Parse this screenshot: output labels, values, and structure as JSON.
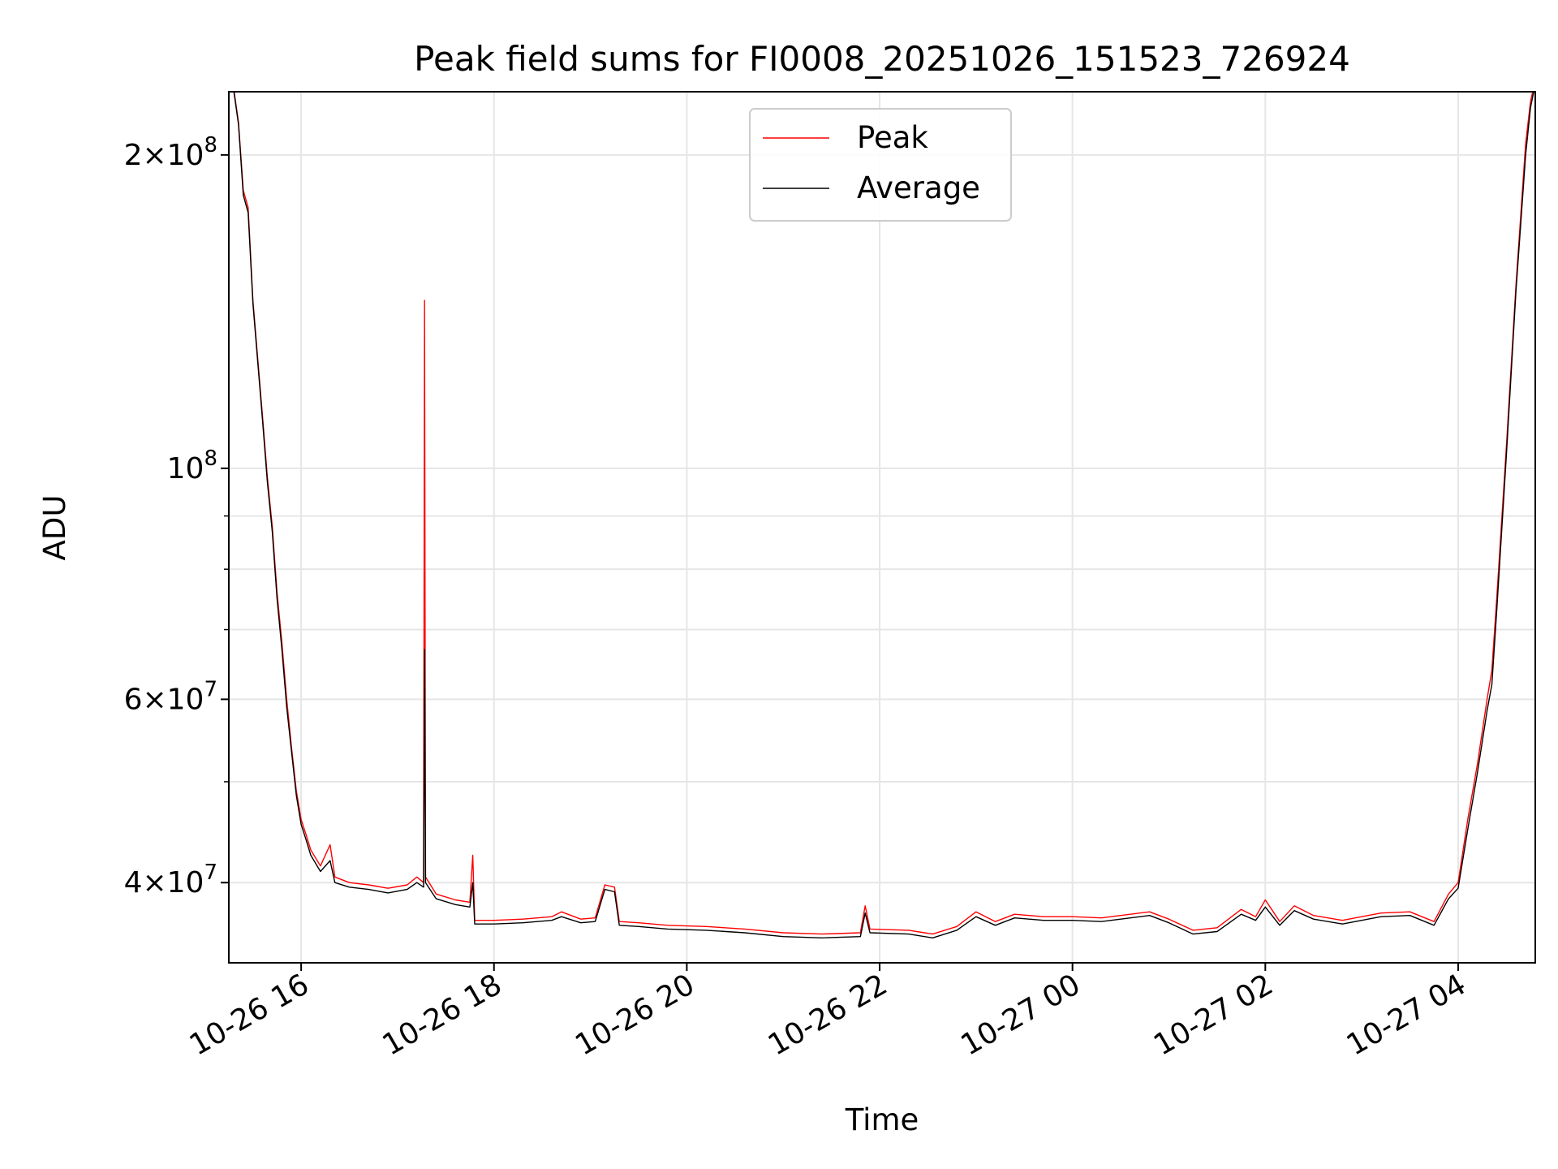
{
  "chart_data": {
    "type": "line",
    "title": "Peak field sums for FI0008_20251026_151523_726924",
    "xlabel": "Time",
    "ylabel": "ADU",
    "yscale": "log",
    "ylim": [
      33500000,
      230000000
    ],
    "xlim_hours": [
      15.25,
      28.8
    ],
    "grid": true,
    "legend_position": "top-center",
    "x_ticks": [
      {
        "hour": 16,
        "label": "10-26 16"
      },
      {
        "hour": 18,
        "label": "10-26 18"
      },
      {
        "hour": 20,
        "label": "10-26 20"
      },
      {
        "hour": 22,
        "label": "10-26 22"
      },
      {
        "hour": 24,
        "label": "10-27 00"
      },
      {
        "hour": 26,
        "label": "10-27 02"
      },
      {
        "hour": 28,
        "label": "10-27 04"
      }
    ],
    "y_ticks": [
      {
        "value": 40000000,
        "base": "4×10",
        "exp": "7"
      },
      {
        "value": 60000000,
        "base": "6×10",
        "exp": "7"
      },
      {
        "value": 100000000,
        "base": "10",
        "exp": "8"
      },
      {
        "value": 200000000,
        "base": "2×10",
        "exp": "8"
      }
    ],
    "y_minor_ticks": [
      50000000,
      70000000,
      80000000,
      90000000
    ],
    "series": [
      {
        "name": "Peak",
        "color": "#ff0000",
        "points": [
          [
            15.25,
            235000000
          ],
          [
            15.3,
            232000000
          ],
          [
            15.35,
            215000000
          ],
          [
            15.4,
            185000000
          ],
          [
            15.45,
            178000000
          ],
          [
            15.5,
            145000000
          ],
          [
            15.6,
            112000000
          ],
          [
            15.65,
            98000000
          ],
          [
            15.7,
            88000000
          ],
          [
            15.75,
            76000000
          ],
          [
            15.8,
            68000000
          ],
          [
            15.85,
            60000000
          ],
          [
            15.9,
            54000000
          ],
          [
            15.95,
            49000000
          ],
          [
            16.0,
            46000000
          ],
          [
            16.05,
            44500000
          ],
          [
            16.1,
            43000000
          ],
          [
            16.2,
            41500000
          ],
          [
            16.3,
            43500000
          ],
          [
            16.35,
            40500000
          ],
          [
            16.5,
            40000000
          ],
          [
            16.7,
            39800000
          ],
          [
            16.9,
            39500000
          ],
          [
            17.1,
            39800000
          ],
          [
            17.2,
            40500000
          ],
          [
            17.27,
            40000000
          ],
          [
            17.28,
            145000000
          ],
          [
            17.29,
            40500000
          ],
          [
            17.4,
            39000000
          ],
          [
            17.6,
            38500000
          ],
          [
            17.75,
            38300000
          ],
          [
            17.78,
            42500000
          ],
          [
            17.8,
            36800000
          ],
          [
            18.0,
            36800000
          ],
          [
            18.3,
            36900000
          ],
          [
            18.6,
            37100000
          ],
          [
            18.7,
            37500000
          ],
          [
            18.9,
            36900000
          ],
          [
            19.05,
            37000000
          ],
          [
            19.15,
            39800000
          ],
          [
            19.25,
            39600000
          ],
          [
            19.3,
            36700000
          ],
          [
            19.5,
            36600000
          ],
          [
            19.8,
            36400000
          ],
          [
            20.2,
            36300000
          ],
          [
            20.6,
            36100000
          ],
          [
            21.0,
            35800000
          ],
          [
            21.4,
            35700000
          ],
          [
            21.8,
            35800000
          ],
          [
            21.85,
            38000000
          ],
          [
            21.9,
            36100000
          ],
          [
            22.3,
            36000000
          ],
          [
            22.55,
            35700000
          ],
          [
            22.8,
            36300000
          ],
          [
            23.0,
            37500000
          ],
          [
            23.2,
            36700000
          ],
          [
            23.4,
            37300000
          ],
          [
            23.7,
            37100000
          ],
          [
            24.0,
            37100000
          ],
          [
            24.3,
            37000000
          ],
          [
            24.5,
            37200000
          ],
          [
            24.8,
            37500000
          ],
          [
            25.0,
            36900000
          ],
          [
            25.25,
            36000000
          ],
          [
            25.5,
            36200000
          ],
          [
            25.75,
            37700000
          ],
          [
            25.9,
            37100000
          ],
          [
            26.0,
            38500000
          ],
          [
            26.15,
            36700000
          ],
          [
            26.3,
            38000000
          ],
          [
            26.5,
            37200000
          ],
          [
            26.8,
            36800000
          ],
          [
            27.0,
            37100000
          ],
          [
            27.2,
            37400000
          ],
          [
            27.5,
            37500000
          ],
          [
            27.75,
            36700000
          ],
          [
            27.9,
            39000000
          ],
          [
            28.0,
            40000000
          ],
          [
            28.1,
            46000000
          ],
          [
            28.2,
            52000000
          ],
          [
            28.3,
            60000000
          ],
          [
            28.35,
            64000000
          ],
          [
            28.4,
            75000000
          ],
          [
            28.5,
            105000000
          ],
          [
            28.6,
            150000000
          ],
          [
            28.7,
            205000000
          ],
          [
            28.75,
            225000000
          ],
          [
            28.8,
            236000000
          ]
        ]
      },
      {
        "name": "Average",
        "color": "#000000",
        "points": [
          [
            15.25,
            235000000
          ],
          [
            15.3,
            231000000
          ],
          [
            15.35,
            214000000
          ],
          [
            15.4,
            183000000
          ],
          [
            15.45,
            176000000
          ],
          [
            15.5,
            144000000
          ],
          [
            15.6,
            111000000
          ],
          [
            15.65,
            97000000
          ],
          [
            15.7,
            87000000
          ],
          [
            15.75,
            75000000
          ],
          [
            15.8,
            67000000
          ],
          [
            15.85,
            59000000
          ],
          [
            15.9,
            53500000
          ],
          [
            15.95,
            48500000
          ],
          [
            16.0,
            45500000
          ],
          [
            16.05,
            44000000
          ],
          [
            16.1,
            42500000
          ],
          [
            16.2,
            41000000
          ],
          [
            16.3,
            42000000
          ],
          [
            16.35,
            40000000
          ],
          [
            16.5,
            39600000
          ],
          [
            16.7,
            39400000
          ],
          [
            16.9,
            39100000
          ],
          [
            17.1,
            39400000
          ],
          [
            17.2,
            40000000
          ],
          [
            17.27,
            39600000
          ],
          [
            17.28,
            67000000
          ],
          [
            17.29,
            40000000
          ],
          [
            17.4,
            38600000
          ],
          [
            17.6,
            38100000
          ],
          [
            17.75,
            37900000
          ],
          [
            17.78,
            40000000
          ],
          [
            17.8,
            36500000
          ],
          [
            18.0,
            36500000
          ],
          [
            18.3,
            36600000
          ],
          [
            18.6,
            36800000
          ],
          [
            18.7,
            37100000
          ],
          [
            18.9,
            36600000
          ],
          [
            19.05,
            36700000
          ],
          [
            19.15,
            39400000
          ],
          [
            19.25,
            39200000
          ],
          [
            19.3,
            36400000
          ],
          [
            19.5,
            36300000
          ],
          [
            19.8,
            36100000
          ],
          [
            20.2,
            36000000
          ],
          [
            20.6,
            35800000
          ],
          [
            21.0,
            35500000
          ],
          [
            21.4,
            35400000
          ],
          [
            21.8,
            35500000
          ],
          [
            21.85,
            37400000
          ],
          [
            21.9,
            35800000
          ],
          [
            22.3,
            35700000
          ],
          [
            22.55,
            35400000
          ],
          [
            22.8,
            36000000
          ],
          [
            23.0,
            37100000
          ],
          [
            23.2,
            36400000
          ],
          [
            23.4,
            37000000
          ],
          [
            23.7,
            36800000
          ],
          [
            24.0,
            36800000
          ],
          [
            24.3,
            36700000
          ],
          [
            24.5,
            36900000
          ],
          [
            24.8,
            37200000
          ],
          [
            25.0,
            36600000
          ],
          [
            25.25,
            35700000
          ],
          [
            25.5,
            35900000
          ],
          [
            25.75,
            37300000
          ],
          [
            25.9,
            36800000
          ],
          [
            26.0,
            37900000
          ],
          [
            26.15,
            36400000
          ],
          [
            26.3,
            37600000
          ],
          [
            26.5,
            36900000
          ],
          [
            26.8,
            36500000
          ],
          [
            27.0,
            36800000
          ],
          [
            27.2,
            37100000
          ],
          [
            27.5,
            37200000
          ],
          [
            27.75,
            36400000
          ],
          [
            27.9,
            38600000
          ],
          [
            28.0,
            39500000
          ],
          [
            28.1,
            45000000
          ],
          [
            28.2,
            51000000
          ],
          [
            28.3,
            58500000
          ],
          [
            28.35,
            62000000
          ],
          [
            28.4,
            73000000
          ],
          [
            28.5,
            103000000
          ],
          [
            28.6,
            148000000
          ],
          [
            28.7,
            200000000
          ],
          [
            28.75,
            222000000
          ],
          [
            28.8,
            234000000
          ]
        ]
      }
    ]
  }
}
